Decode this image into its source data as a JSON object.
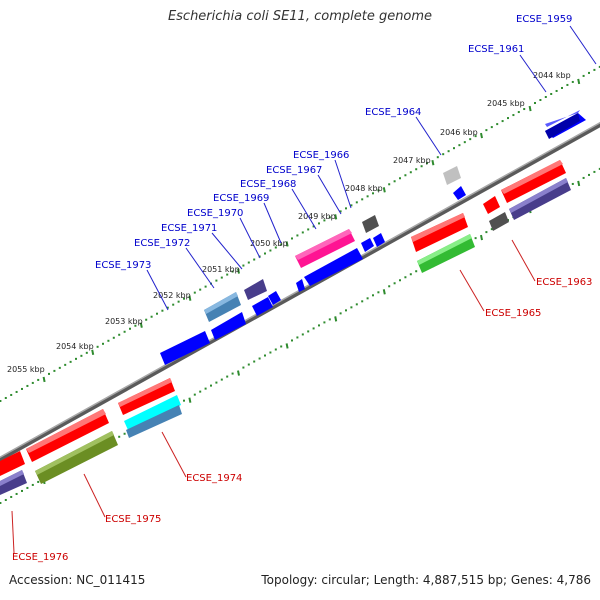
{
  "title": "Escherichia coli SE11, complete genome",
  "accession": "Accession: NC_011415",
  "topology": "Topology: circular; Length: 4,887,515 bp; Genes: 4,786",
  "colors": {
    "backbone": "#808080",
    "dots": "#2e8b2e",
    "top_labels": "#0000cc",
    "bottom_labels": "#cc0000",
    "red_gene": "#ff0000",
    "blue_gene": "#0000ff",
    "green_gene": "#33bb33",
    "olive_gene": "#6b8e23",
    "cyan_gene": "#00ffff",
    "steel_gene": "#4682b4",
    "slate_gene": "#483d8b",
    "pink_gene": "#ff1493",
    "gray_gene": "#505050",
    "silver_gene": "#c0c0c0"
  },
  "kbp_ticks": [
    "2044 kbp",
    "2045 kbp",
    "2046 kbp",
    "2047 kbp",
    "2048 kbp",
    "2049 kbp",
    "2050 kbp",
    "2051 kbp",
    "2052 kbp",
    "2053 kbp",
    "2054 kbp",
    "2055 kbp"
  ],
  "top_gene_labels": [
    "ECSE_1959",
    "ECSE_1961",
    "ECSE_1964",
    "ECSE_1966",
    "ECSE_1967",
    "ECSE_1968",
    "ECSE_1969",
    "ECSE_1970",
    "ECSE_1971",
    "ECSE_1972",
    "ECSE_1973"
  ],
  "bottom_gene_labels": [
    "ECSE_1963",
    "ECSE_1965",
    "ECSE_1974",
    "ECSE_1975",
    "ECSE_1976"
  ]
}
